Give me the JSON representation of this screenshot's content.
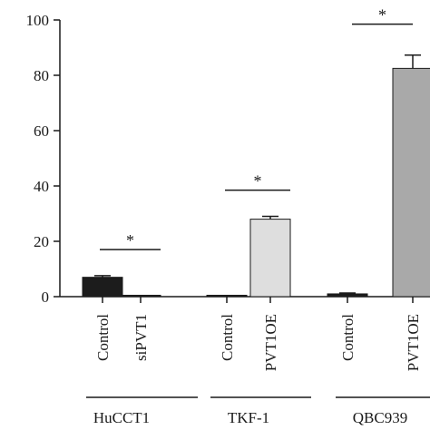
{
  "chart_data": {
    "type": "bar",
    "title": "",
    "xlabel": "",
    "ylabel": "",
    "ylim": [
      0,
      100
    ],
    "yticks": [
      "0",
      "20",
      "40",
      "60",
      "80",
      "100"
    ],
    "grid": false,
    "categories": [
      "Control",
      "siPVT1",
      "Control",
      "PVT1OE",
      "Control",
      "PVT1OE"
    ],
    "values": [
      7.0,
      0.5,
      0.5,
      28.0,
      1.0,
      82.5
    ],
    "errors": [
      0.6,
      0.2,
      0.2,
      1.0,
      0.3,
      4.8
    ],
    "bar_colors": [
      "#1c1c1c",
      "#1c1c1c",
      "#1c1c1c",
      "#dedede",
      "#1c1c1c",
      "#a9a9a9"
    ],
    "groups": [
      {
        "label": "HuCCT1",
        "bars": [
          0,
          1
        ]
      },
      {
        "label": "TKF-1",
        "bars": [
          2,
          3
        ]
      },
      {
        "label": "QBC939",
        "bars": [
          4,
          5
        ]
      }
    ],
    "significance": [
      {
        "label": "*",
        "bars": [
          0,
          1
        ],
        "level": 17
      },
      {
        "label": "*",
        "bars": [
          2,
          3
        ],
        "level": 38.5
      },
      {
        "label": "*",
        "bars": [
          4,
          5
        ],
        "level": 98.5
      }
    ]
  }
}
